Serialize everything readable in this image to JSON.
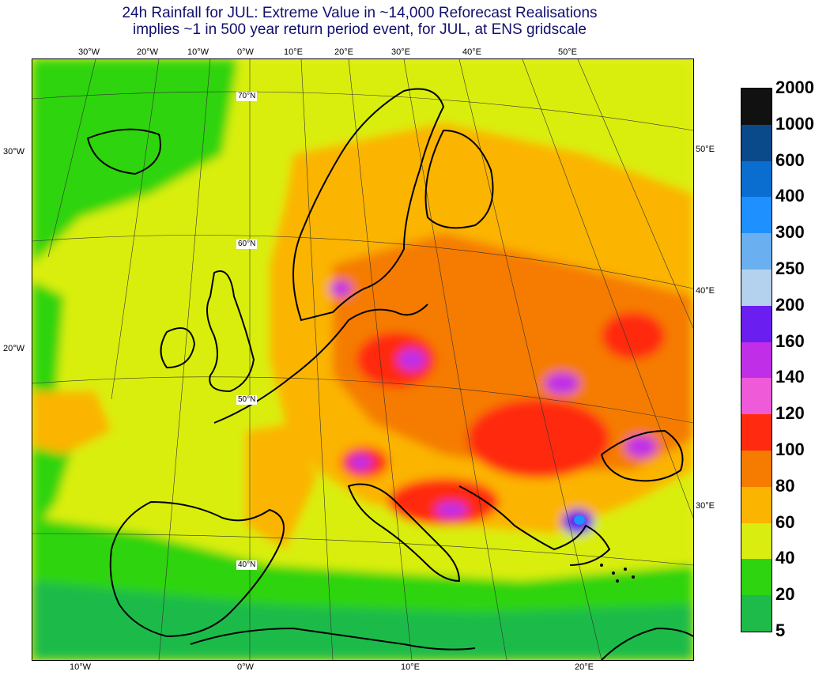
{
  "title": {
    "line1": "24h Rainfall for JUL: Extreme Value in ~14,000 Reforecast Realisations",
    "line2": "implies ~1 in 500 year return period event, for JUL, at ENS gridscale"
  },
  "ticks": {
    "top": [
      "30°W",
      "20°W",
      "10°W",
      "0°W",
      "10°E",
      "20°E",
      "30°E",
      "40°E",
      "50°E"
    ],
    "bottom": [
      "10°W",
      "0°W",
      "10°E",
      "20°E"
    ],
    "left": [
      "30°W",
      "20°W"
    ],
    "right": [
      "50°E",
      "40°E",
      "30°E"
    ],
    "latitudes": [
      "70°N",
      "60°N",
      "50°N",
      "40°N"
    ]
  },
  "legend": {
    "levels": [
      "2000",
      "1000",
      "600",
      "400",
      "300",
      "250",
      "200",
      "160",
      "140",
      "120",
      "100",
      "80",
      "60",
      "40",
      "20",
      "5"
    ],
    "colors": [
      "#111111",
      "#0b4a8a",
      "#0a6ed0",
      "#1e90ff",
      "#6ab0f0",
      "#b4d2ee",
      "#6a1ef0",
      "#c02ee8",
      "#ee5ad8",
      "#ff2a10",
      "#f57c00",
      "#fbb400",
      "#d9ee10",
      "#2ed410",
      "#1fbb4a"
    ]
  }
}
